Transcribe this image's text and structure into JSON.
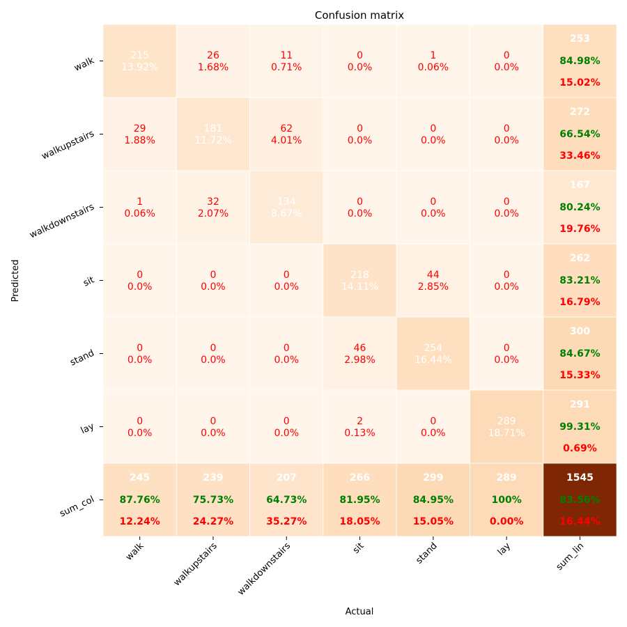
{
  "chart_data": {
    "type": "heatmap",
    "title": "Confusion matrix",
    "xlabel": "Actual",
    "ylabel": "Predicted",
    "x_categories": [
      "walk",
      "walkupstairs",
      "walkdownstairs",
      "sit",
      "stand",
      "lay",
      "sum_lin"
    ],
    "y_categories": [
      "walk",
      "walkupstairs",
      "walkdownstairs",
      "sit",
      "stand",
      "lay",
      "sum_col"
    ],
    "matrix": [
      [
        215,
        26,
        11,
        0,
        1,
        0
      ],
      [
        29,
        181,
        62,
        0,
        0,
        0
      ],
      [
        1,
        32,
        134,
        0,
        0,
        0
      ],
      [
        0,
        0,
        0,
        218,
        44,
        0
      ],
      [
        0,
        0,
        0,
        46,
        254,
        0
      ],
      [
        0,
        0,
        0,
        2,
        0,
        289
      ]
    ],
    "cell_percent": [
      [
        "13.92%",
        "1.68%",
        "0.71%",
        "0.0%",
        "0.06%",
        "0.0%"
      ],
      [
        "1.88%",
        "11.72%",
        "4.01%",
        "0.0%",
        "0.0%",
        "0.0%"
      ],
      [
        "0.06%",
        "2.07%",
        "8.67%",
        "0.0%",
        "0.0%",
        "0.0%"
      ],
      [
        "0.0%",
        "0.0%",
        "0.0%",
        "14.11%",
        "2.85%",
        "0.0%"
      ],
      [
        "0.0%",
        "0.0%",
        "0.0%",
        "2.98%",
        "16.44%",
        "0.0%"
      ],
      [
        "0.0%",
        "0.0%",
        "0.0%",
        "0.13%",
        "0.0%",
        "18.71%"
      ]
    ],
    "row_totals": [
      {
        "total": 253,
        "correct": "84.98%",
        "error": "15.02%"
      },
      {
        "total": 272,
        "correct": "66.54%",
        "error": "33.46%"
      },
      {
        "total": 167,
        "correct": "80.24%",
        "error": "19.76%"
      },
      {
        "total": 262,
        "correct": "83.21%",
        "error": "16.79%"
      },
      {
        "total": 300,
        "correct": "84.67%",
        "error": "15.33%"
      },
      {
        "total": 291,
        "correct": "99.31%",
        "error": "0.69%"
      }
    ],
    "col_totals": [
      {
        "total": 245,
        "correct": "87.76%",
        "error": "12.24%"
      },
      {
        "total": 239,
        "correct": "75.73%",
        "error": "24.27%"
      },
      {
        "total": 207,
        "correct": "64.73%",
        "error": "35.27%"
      },
      {
        "total": 266,
        "correct": "81.95%",
        "error": "18.05%"
      },
      {
        "total": 299,
        "correct": "84.95%",
        "error": "15.05%"
      },
      {
        "total": 289,
        "correct": "100%",
        "error": "0.00%"
      }
    ],
    "grand_total": {
      "total": 1545,
      "correct": "83.56%",
      "error": "16.44%"
    },
    "colormap": "Oranges",
    "colors": {
      "diagonal_text": "#ffffff",
      "offdiag_text": "#ff0000",
      "correct_text": "#008000",
      "error_text": "#ff0000",
      "total_text": "#ffffff",
      "grand_total_cell": "#7f2704"
    },
    "grid": false,
    "legend": "none"
  }
}
